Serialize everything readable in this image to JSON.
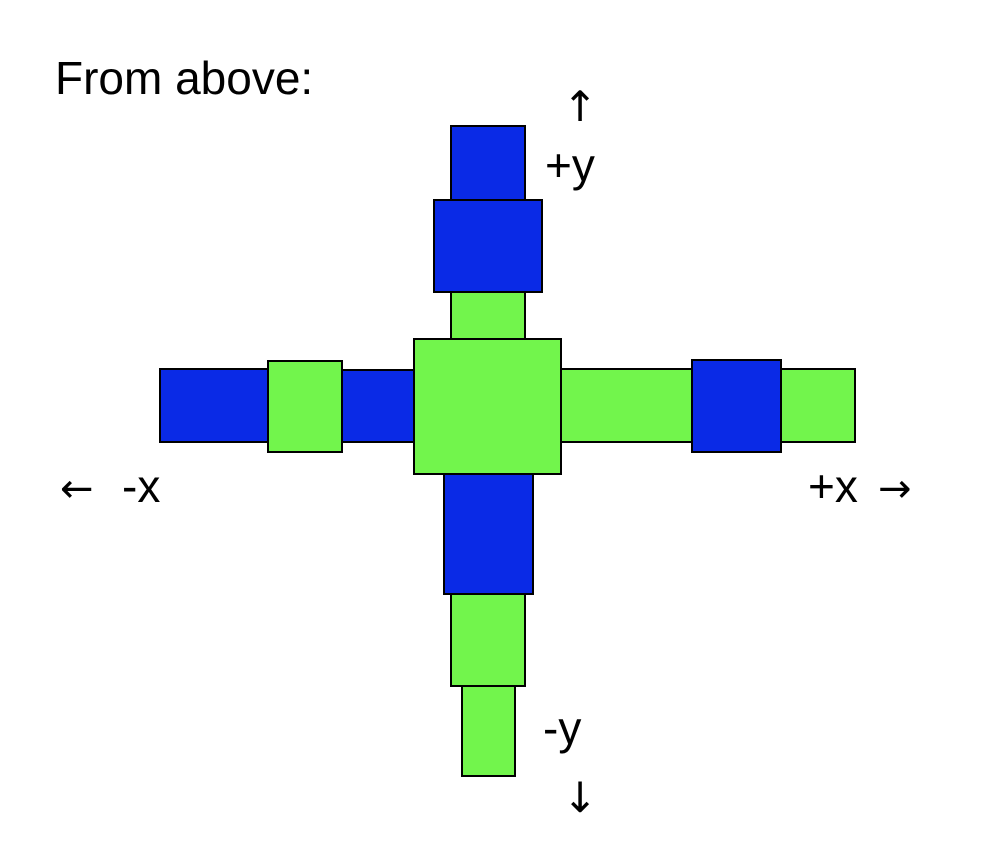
{
  "title": "From above:",
  "labels": {
    "pos_y": "+y",
    "neg_y": "-y",
    "neg_x": "-x",
    "pos_x": "+x"
  },
  "arrows": {
    "up": "↑",
    "down": "↓",
    "left": "←",
    "right": "→"
  },
  "colors": {
    "blue": "#0a2ae6",
    "green": "#72f54c",
    "outline": "#000000"
  },
  "arms": {
    "up": [
      "green",
      "blue",
      "blue"
    ],
    "down": [
      "blue",
      "green",
      "green"
    ],
    "left": [
      "blue",
      "green",
      "blue"
    ],
    "right": [
      "green",
      "blue",
      "green"
    ]
  },
  "hub": "green"
}
